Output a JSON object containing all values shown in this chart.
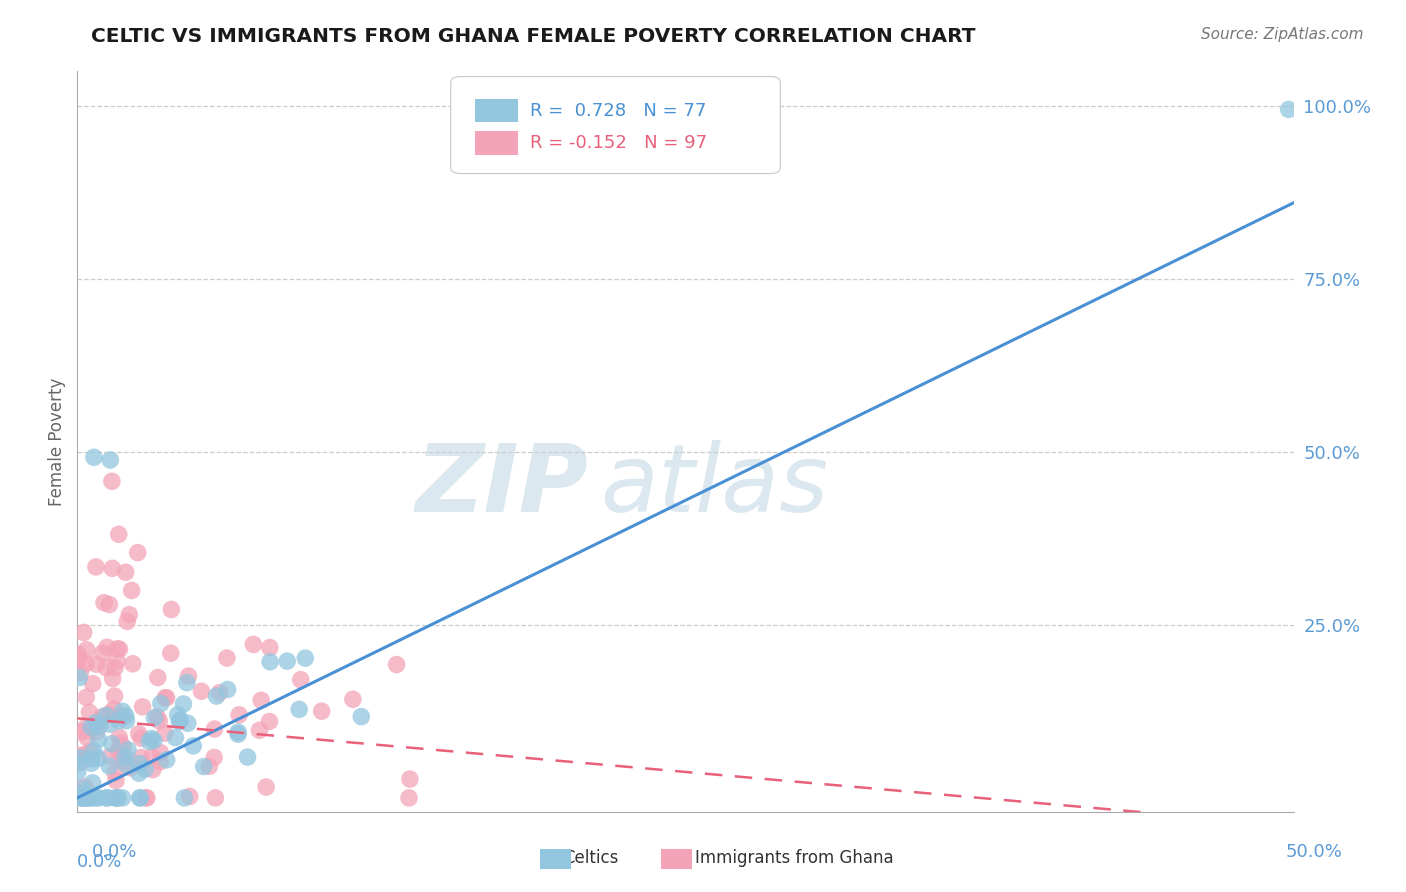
{
  "title": "CELTIC VS IMMIGRANTS FROM GHANA FEMALE POVERTY CORRELATION CHART",
  "source": "Source: ZipAtlas.com",
  "ylabel": "Female Poverty",
  "xlim": [
    0.0,
    0.5
  ],
  "ylim": [
    -0.02,
    1.05
  ],
  "blue_trend_x0": 0.0,
  "blue_trend_y0": 0.0,
  "blue_trend_x1": 0.5,
  "blue_trend_y1": 0.86,
  "pink_trend_x0": 0.0,
  "pink_trend_y0": 0.115,
  "pink_trend_x1": 0.5,
  "pink_trend_y1": -0.04,
  "celtic_R": 0.728,
  "celtic_N": 77,
  "ghana_R": -0.152,
  "ghana_N": 97,
  "blue_line_color": "#4a90d4",
  "pink_line_color": "#e8607a",
  "blue_dot_color": "#92c5de",
  "pink_dot_color": "#f4a4b8",
  "background_color": "#ffffff",
  "grid_color": "#c8c8c8",
  "tick_color": "#5b9bd5",
  "title_color": "#1a1a1a",
  "watermark": "ZIPatlas",
  "watermark_color": "#dce8f0",
  "ytick_vals": [
    0.25,
    0.5,
    0.75,
    1.0
  ],
  "ytick_labels": [
    "25.0%",
    "50.0%",
    "75.0%",
    "100.0%"
  ]
}
